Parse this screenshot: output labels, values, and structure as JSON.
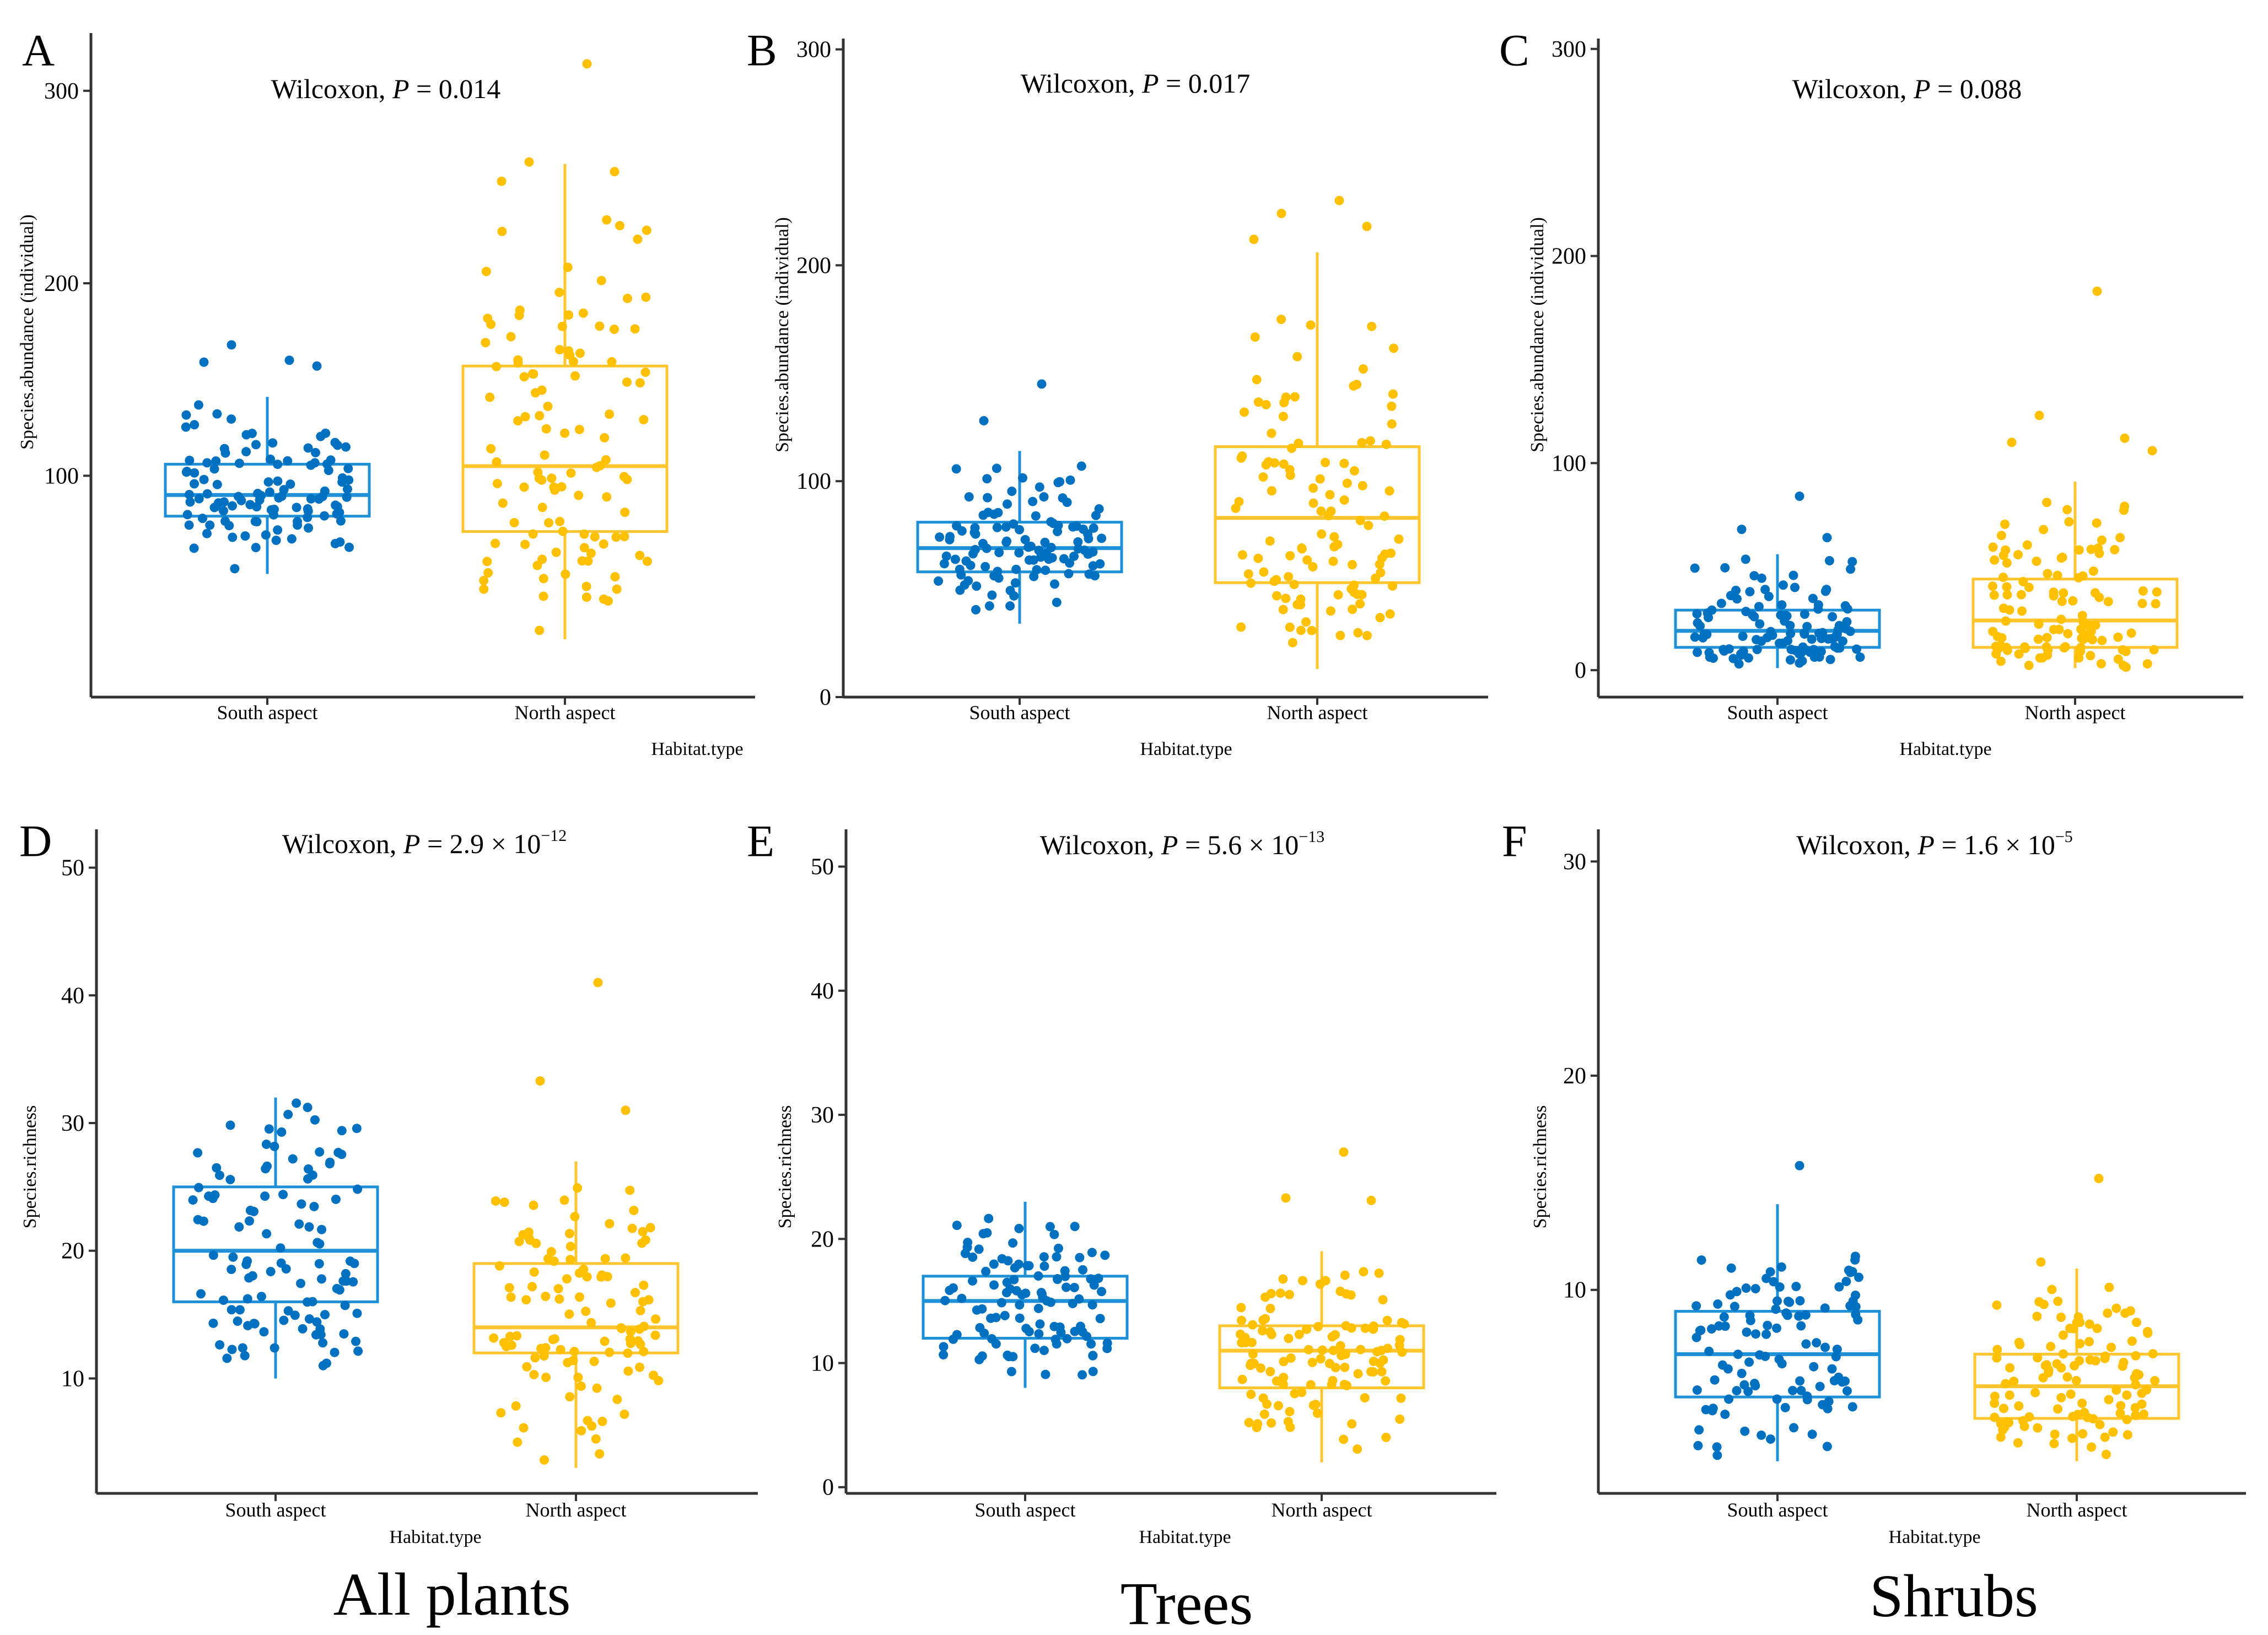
{
  "figure": {
    "column_labels": [
      "All plants",
      "Trees",
      "Shrubs"
    ]
  },
  "colors": {
    "south": "#0070C0",
    "south_box": "#1E90D8",
    "north": "#FFC000",
    "north_box": "#FFC52E",
    "axis": "#333333"
  },
  "chart_data": [
    {
      "panel": "A",
      "type": "box",
      "stat_prefix": "Wilcoxon, ",
      "stat_p": "P",
      "stat_value": " = 0.014",
      "stat_exp": "",
      "xlabel": "Habitat.type",
      "ylabel": "Species.abundance (individual)",
      "ylim": [
        -15,
        330
      ],
      "yticks": [
        100,
        200,
        300
      ],
      "categories": [
        "South aspect",
        "North aspect"
      ],
      "boxes": [
        {
          "min": 49,
          "q1": 79,
          "median": 90,
          "q3": 106,
          "max": 141,
          "n": 110
        },
        {
          "min": 15,
          "q1": 71,
          "median": 105,
          "q3": 157,
          "max": 262,
          "n": 110
        }
      ],
      "outliers": [
        [
          160,
          168,
          157,
          159
        ],
        [
          314,
          263,
          258,
          253
        ]
      ]
    },
    {
      "panel": "B",
      "type": "box",
      "stat_prefix": "Wilcoxon, ",
      "stat_p": "P",
      "stat_value": " = 0.017",
      "stat_exp": "",
      "xlabel": "Habitat.type",
      "ylabel": "Species.abundance (individual)",
      "ylim": [
        0,
        305
      ],
      "yticks": [
        0,
        100,
        200,
        300
      ],
      "categories": [
        "South aspect",
        "North aspect"
      ],
      "boxes": [
        {
          "min": 34,
          "q1": 58,
          "median": 69,
          "q3": 81,
          "max": 114,
          "n": 110
        },
        {
          "min": 13,
          "q1": 53,
          "median": 83,
          "q3": 116,
          "max": 206,
          "n": 110
        }
      ],
      "outliers": [
        [
          145,
          128
        ],
        [
          230,
          224,
          218,
          212
        ]
      ]
    },
    {
      "panel": "C",
      "type": "box",
      "stat_prefix": "Wilcoxon, ",
      "stat_p": "P",
      "stat_value": " = 0.088",
      "stat_exp": "",
      "xlabel": "Habitat.type",
      "ylabel": "Species.abundance (individual)",
      "ylim": [
        -13,
        305
      ],
      "yticks": [
        0,
        100,
        200,
        300
      ],
      "categories": [
        "South aspect",
        "North aspect"
      ],
      "boxes": [
        {
          "min": 1,
          "q1": 11,
          "median": 19,
          "q3": 29,
          "max": 56,
          "n": 110
        },
        {
          "min": 1,
          "q1": 11,
          "median": 24,
          "q3": 44,
          "max": 91,
          "n": 110
        }
      ],
      "outliers": [
        [
          84,
          68,
          64
        ],
        [
          183,
          123,
          112,
          110,
          106
        ]
      ]
    },
    {
      "panel": "D",
      "type": "box",
      "stat_prefix": "Wilcoxon, ",
      "stat_p": "P",
      "stat_value": " = 2.9 × 10",
      "stat_exp": "−12",
      "xlabel": "Habitat.type",
      "ylabel": "Species.richness",
      "ylim": [
        1,
        53
      ],
      "yticks": [
        10,
        20,
        30,
        40,
        50
      ],
      "categories": [
        "South aspect",
        "North aspect"
      ],
      "boxes": [
        {
          "min": 10,
          "q1": 16,
          "median": 20,
          "q3": 25,
          "max": 32,
          "n": 110
        },
        {
          "min": 3,
          "q1": 12,
          "median": 14,
          "q3": 19,
          "max": 27,
          "n": 110
        }
      ],
      "outliers": [
        [],
        [
          41,
          33.3,
          31
        ]
      ]
    },
    {
      "panel": "E",
      "type": "box",
      "stat_prefix": "Wilcoxon, ",
      "stat_p": "P",
      "stat_value": " = 5.6 × 10",
      "stat_exp": "−13",
      "xlabel": "Habitat.type",
      "ylabel": "Species.richness",
      "ylim": [
        -0.5,
        53
      ],
      "yticks": [
        0,
        10,
        20,
        30,
        40,
        50
      ],
      "categories": [
        "South aspect",
        "North aspect"
      ],
      "boxes": [
        {
          "min": 8,
          "q1": 12,
          "median": 15,
          "q3": 17,
          "max": 23,
          "n": 110
        },
        {
          "min": 2,
          "q1": 8,
          "median": 11,
          "q3": 13,
          "max": 19,
          "n": 110
        }
      ],
      "outliers": [
        [],
        [
          27,
          23.3,
          23.1
        ]
      ]
    },
    {
      "panel": "F",
      "type": "box",
      "stat_prefix": "Wilcoxon, ",
      "stat_p": "P",
      "stat_value": " = 1.6 × 10",
      "stat_exp": "−5",
      "xlabel": "Habitat.type",
      "ylabel": "Species.richness",
      "ylim": [
        0.5,
        31.5
      ],
      "yticks": [
        10,
        20,
        30
      ],
      "categories": [
        "South aspect",
        "North aspect"
      ],
      "boxes": [
        {
          "min": 2,
          "q1": 5,
          "median": 7,
          "q3": 9,
          "max": 14,
          "n": 110
        },
        {
          "min": 2,
          "q1": 4,
          "median": 5.5,
          "q3": 7,
          "max": 11,
          "n": 110
        }
      ],
      "outliers": [
        [
          15.8
        ],
        [
          15.2,
          11.3
        ]
      ]
    }
  ]
}
